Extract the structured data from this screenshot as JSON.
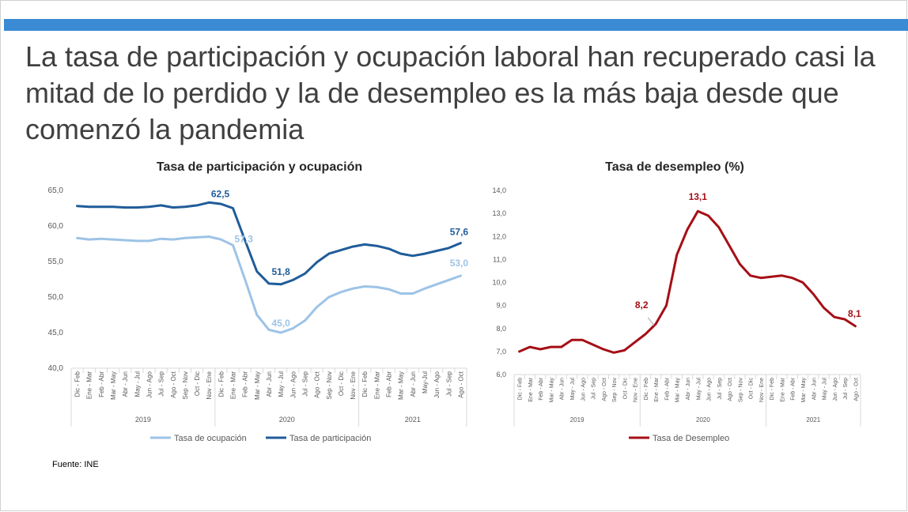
{
  "slide": {
    "title": "La tasa de participación y ocupación laboral han recuperado casi la mitad de lo perdido y la de desempleo es la más baja desde que comenzó la pandemia",
    "source": "Fuente: INE"
  },
  "chart_data": [
    {
      "type": "line",
      "title": "Tasa de participación y ocupación",
      "categories": [
        "Dic - Feb",
        "Ene - Mar",
        "Feb - Abr",
        "Mar - May",
        "Abr - Jun",
        "May - Jul",
        "Jun - Ago",
        "Jul - Sep",
        "Ago - Oct",
        "Sep - Nov",
        "Oct - Dic",
        "Nov - Ene",
        "Dic - Feb",
        "Ene - Mar",
        "Feb - Abr",
        "Mar - May",
        "Abr - Jun",
        "May - Jul",
        "Jun - Ago",
        "Jul - Sep",
        "Ago - Oct",
        "Sep - Nov",
        "Oct - Dic",
        "Nov - Ene",
        "Dic - Feb",
        "Ene - Mar",
        "Feb - Abr",
        "Mar - May",
        "Abr - Jun",
        "May-Jul",
        "Jun - Ago",
        "Jul - Sep",
        "Ago - Oct"
      ],
      "years": [
        {
          "label": "2019",
          "start": 0,
          "end": 11
        },
        {
          "label": "2020",
          "start": 12,
          "end": 23
        },
        {
          "label": "2021",
          "start": 24,
          "end": 32
        }
      ],
      "ylim": [
        40,
        65
      ],
      "yticks": [
        "40,0",
        "45,0",
        "50,0",
        "55,0",
        "60,0",
        "65,0"
      ],
      "series": [
        {
          "name": "Tasa de ocupación",
          "color": "#9dc3e6",
          "values": [
            58.3,
            58.1,
            58.2,
            58.1,
            58.0,
            57.9,
            57.9,
            58.2,
            58.1,
            58.3,
            58.4,
            58.5,
            58.1,
            57.3,
            52.5,
            47.5,
            45.4,
            45.0,
            45.6,
            46.7,
            48.6,
            50.0,
            50.7,
            51.2,
            51.5,
            51.4,
            51.1,
            50.5,
            50.5,
            51.2,
            51.8,
            52.4,
            53.0
          ]
        },
        {
          "name": "Tasa de participación",
          "color": "#1f5c99",
          "values": [
            62.8,
            62.7,
            62.7,
            62.7,
            62.6,
            62.6,
            62.7,
            62.9,
            62.6,
            62.7,
            62.9,
            63.3,
            63.1,
            62.5,
            58.0,
            53.6,
            51.9,
            51.8,
            52.4,
            53.3,
            54.9,
            56.1,
            56.6,
            57.1,
            57.4,
            57.2,
            56.8,
            56.1,
            55.8,
            56.1,
            56.5,
            56.9,
            57.6
          ]
        }
      ],
      "labels": [
        {
          "series": 1,
          "index": 13,
          "text": "62,5"
        },
        {
          "series": 0,
          "index": 13,
          "text": "57,3"
        },
        {
          "series": 1,
          "index": 17,
          "text": "51,8"
        },
        {
          "series": 0,
          "index": 17,
          "text": "45,0"
        },
        {
          "series": 1,
          "index": 32,
          "text": "57,6"
        },
        {
          "series": 0,
          "index": 32,
          "text": "53,0"
        }
      ],
      "legend_position": "bottom"
    },
    {
      "type": "line",
      "title": "Tasa de desempleo (%)",
      "categories": [
        "Dic - Feb",
        "Ene - Mar",
        "Feb - Abr",
        "Mar - May",
        "Abr - Jun",
        "May - Jul",
        "Jun - Ago",
        "Jul - Sep",
        "Ago - Oct",
        "Sep - Nov",
        "Oct - Dic",
        "Nov - Ene",
        "Dic - Feb",
        "Ene - Mar",
        "Feb - Abr",
        "Mar - May",
        "Abr - Jun",
        "May - Jul",
        "Jun - Ago",
        "Jul - Sep",
        "Ago - Oct",
        "Sep - Nov",
        "Oct - Dic",
        "Nov - Ene",
        "Dic - Feb",
        "Ene - Mar",
        "Feb - Abr",
        "Mar - May",
        "Abr - Jun",
        "May - Jul",
        "Jun - Ago",
        "Jul - Sep",
        "Ago - Oct"
      ],
      "years": [
        {
          "label": "2019",
          "start": 0,
          "end": 11
        },
        {
          "label": "2020",
          "start": 12,
          "end": 23
        },
        {
          "label": "2021",
          "start": 24,
          "end": 32
        }
      ],
      "ylim": [
        6,
        14
      ],
      "yticks": [
        "6,0",
        "7,0",
        "8,0",
        "9,0",
        "10,0",
        "11,0",
        "12,0",
        "13,0",
        "14,0"
      ],
      "series": [
        {
          "name": "Tasa de Desempleo",
          "color": "#a50f15",
          "values": [
            7.0,
            7.2,
            7.1,
            7.2,
            7.2,
            7.5,
            7.5,
            7.3,
            7.1,
            6.95,
            7.05,
            7.4,
            7.75,
            8.2,
            9.0,
            11.2,
            12.3,
            13.1,
            12.9,
            12.4,
            11.6,
            10.8,
            10.3,
            10.2,
            10.25,
            10.3,
            10.2,
            10.0,
            9.5,
            8.9,
            8.5,
            8.4,
            8.1
          ]
        }
      ],
      "labels": [
        {
          "series": 0,
          "index": 13,
          "text": "8,2"
        },
        {
          "series": 0,
          "index": 17,
          "text": "13,1"
        },
        {
          "series": 0,
          "index": 32,
          "text": "8,1"
        }
      ],
      "legend_position": "bottom"
    }
  ]
}
